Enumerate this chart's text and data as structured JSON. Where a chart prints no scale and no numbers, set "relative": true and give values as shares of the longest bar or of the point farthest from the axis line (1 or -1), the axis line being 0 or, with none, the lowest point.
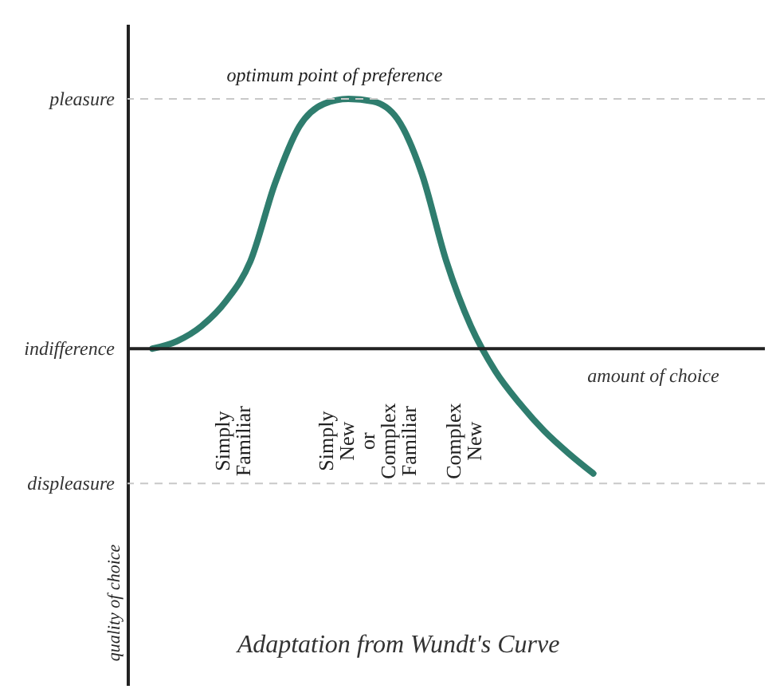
{
  "chart_data": {
    "type": "line",
    "title": "Adaptation from Wundt's Curve",
    "xlabel": "amount of choice",
    "categories": [
      null,
      null,
      null,
      null,
      null,
      null,
      null,
      null,
      null,
      null,
      null,
      null,
      null,
      null,
      null,
      null,
      null,
      null,
      null
    ],
    "series": [
      {
        "color": "#2f7d6e",
        "values": [
          0,
          0.03,
          0.09,
          0.19,
          0.35,
          0.66,
          0.89,
          0.98,
          1,
          0.99,
          0.92,
          0.7,
          0.35,
          0.09,
          -0.09,
          -0.22,
          -0.33,
          -0.42,
          -0.5
        ]
      }
    ],
    "relative": true,
    "ref_lines": [
      {
        "axis": "y",
        "value": 1,
        "label": "pleasure",
        "color": "#c8c8c8",
        "line_style": "dashed"
      },
      {
        "axis": "y",
        "value": 0,
        "label": "indifference",
        "color": "#222222",
        "line_style": "solid"
      },
      {
        "axis": "y",
        "value": -0.54,
        "label": "displeasure",
        "color": "#c8c8c8",
        "line_style": "dashed"
      }
    ],
    "annotations": [
      "optimum point of preference",
      "Simply Familiar",
      "Simply New or Complex Familiar",
      "Complex New",
      "quality of choice"
    ],
    "grid": false,
    "marker": "none",
    "line_style": "solid"
  }
}
